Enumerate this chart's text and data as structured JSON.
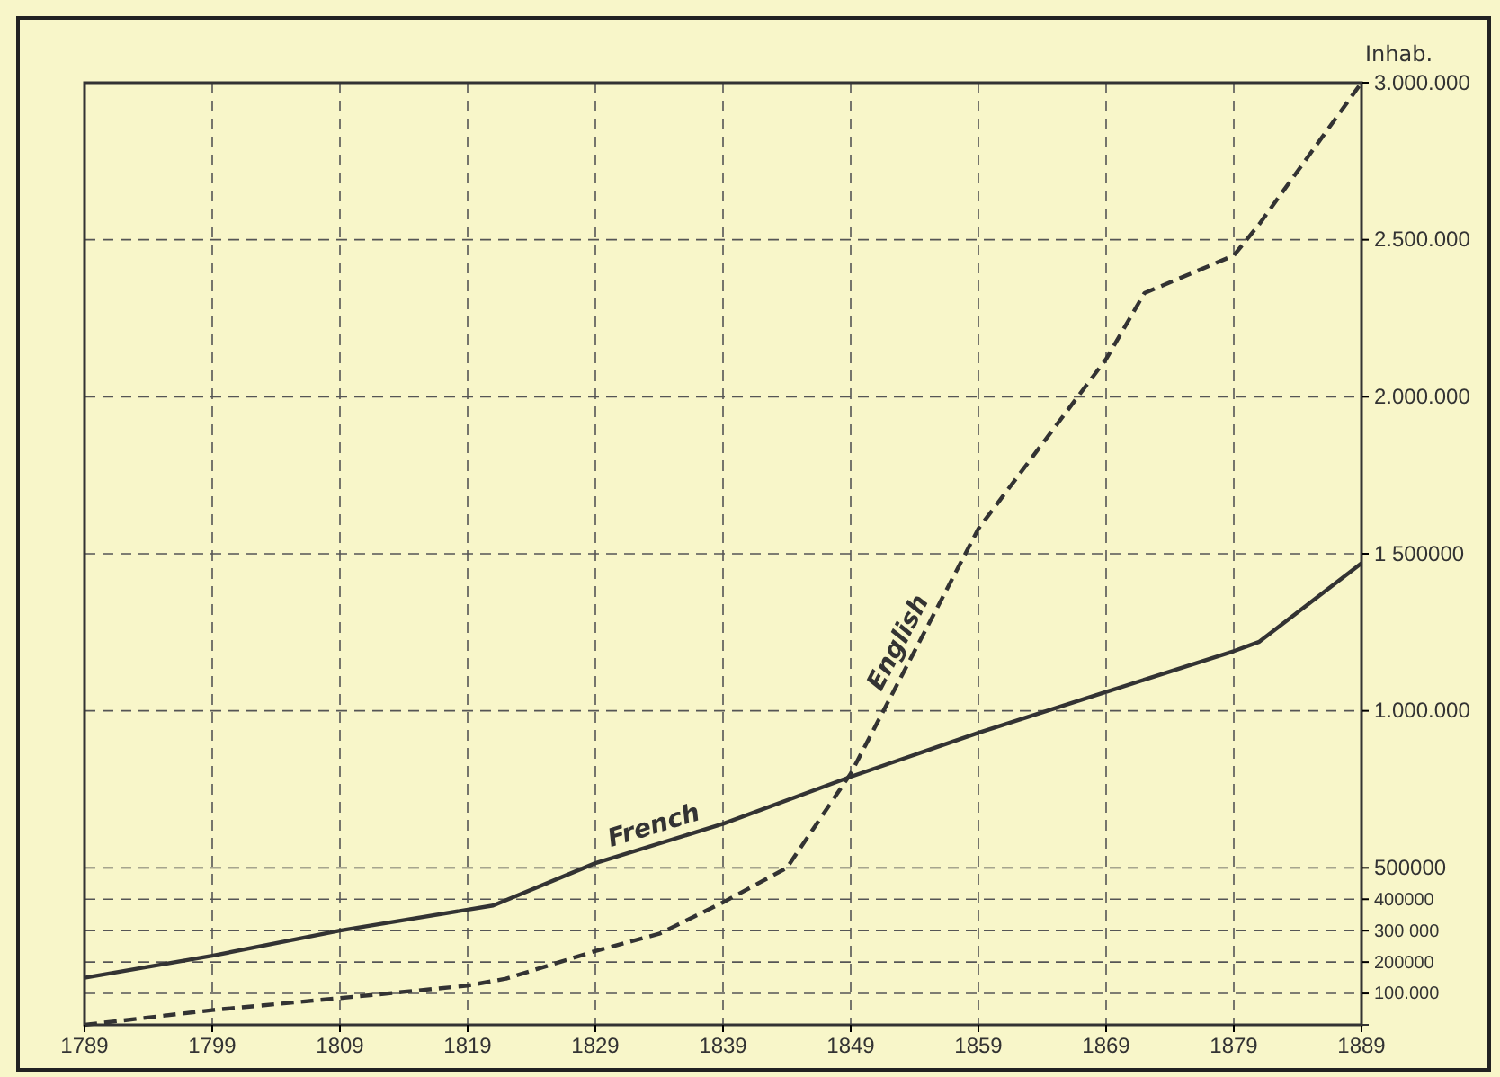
{
  "chart_data": {
    "type": "line",
    "ylabel": "Inhab.",
    "xlim": [
      1789,
      1889
    ],
    "xticks": [
      1789,
      1799,
      1809,
      1819,
      1829,
      1839,
      1849,
      1859,
      1869,
      1879,
      1889
    ],
    "ylim": [
      0,
      3000000
    ],
    "yticks": [
      {
        "value": 100000,
        "label": "100.000"
      },
      {
        "value": 200000,
        "label": "200000"
      },
      {
        "value": 300000,
        "label": "300 000"
      },
      {
        "value": 400000,
        "label": "400000"
      },
      {
        "value": 500000,
        "label": "500000"
      },
      {
        "value": 1000000,
        "label": "1.000.000"
      },
      {
        "value": 1500000,
        "label": "1 500000"
      },
      {
        "value": 2000000,
        "label": "2.000.000"
      },
      {
        "value": 2500000,
        "label": "2.500.000"
      },
      {
        "value": 3000000,
        "label": "3.000.000"
      }
    ],
    "grid": true,
    "series": [
      {
        "name": "French",
        "color": "#333333",
        "line_style": "solid",
        "x": [
          1789,
          1799,
          1809,
          1821,
          1829,
          1839,
          1849,
          1859,
          1869,
          1879,
          1881,
          1889
        ],
        "values": [
          150000,
          220000,
          300000,
          380000,
          515000,
          640000,
          790000,
          930000,
          1060000,
          1190000,
          1220000,
          1470000
        ]
      },
      {
        "name": "English",
        "color": "#333333",
        "line_style": "dashed",
        "x": [
          1789,
          1799,
          1809,
          1819,
          1822,
          1829,
          1834,
          1839,
          1844,
          1849,
          1859,
          1869,
          1872,
          1879,
          1881,
          1889
        ],
        "values": [
          0,
          47000,
          85000,
          125000,
          147000,
          235000,
          290000,
          390000,
          500000,
          800000,
          1580000,
          2120000,
          2330000,
          2450000,
          2550000,
          3000000
        ]
      }
    ]
  }
}
